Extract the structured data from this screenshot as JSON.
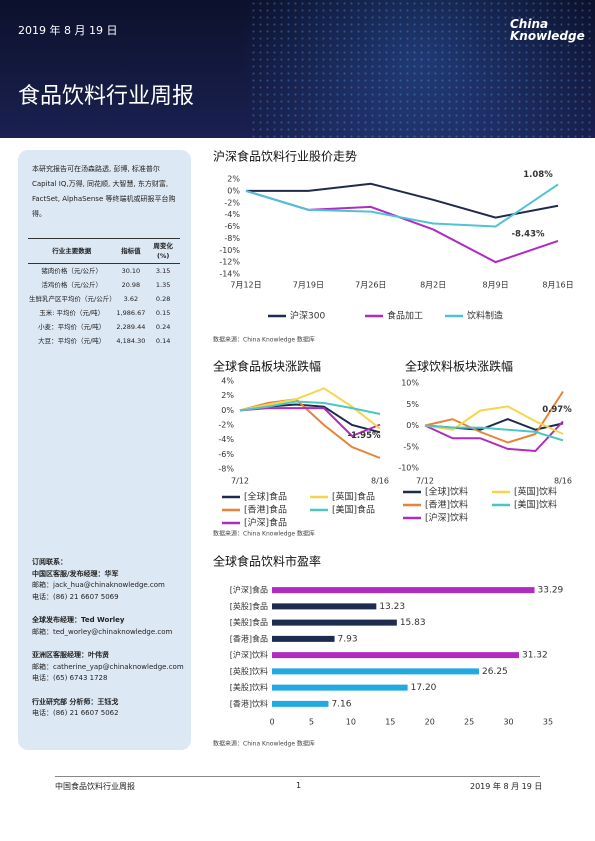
{
  "header": {
    "date": "2019 年 8 月 19 日",
    "logo": "China Knowledge",
    "title": "食品饮料行业周报"
  },
  "sidebar": {
    "intro": "本研究报告可在汤森路透, 彭博, 标准普尔 Capital IQ,万得, 同花顺, 大智慧, 东方财富, FactSet, AlphaSense 等终端机或研报平台购得。",
    "table": {
      "header": [
        "行业主要数据",
        "指标值",
        "周变化(%)"
      ],
      "rows": [
        [
          "猪肉价格（元/公斤）",
          "30.10",
          "3.15"
        ],
        [
          "活鸡价格（元/公斤）",
          "20.98",
          "1.35"
        ],
        [
          "生鲜乳产区平均价（元/公斤）",
          "3.62",
          "0.28"
        ],
        [
          "玉米: 平均价（元/吨）",
          "1,986.67",
          "0.15"
        ],
        [
          "小麦：平均价（元/吨）",
          "2,289.44",
          "0.24"
        ],
        [
          "大豆：平均价（元/吨）",
          "4,184.30",
          "0.14"
        ]
      ]
    },
    "contacts": [
      {
        "role": "订阅联系：",
        "lines": []
      },
      {
        "role": "中国区客服/发布经理：华军",
        "lines": [
          "邮箱：jack_hua@chinaknowledge.com",
          "电话：(86) 21 6607 5069"
        ]
      },
      {
        "role": "全球发布经理：Ted Worley",
        "lines": [
          "邮箱：ted_worley@chinaknowledge.com"
        ]
      },
      {
        "role": "亚洲区客服经理：叶伟贤",
        "lines": [
          "邮箱：catherine_yap@chinaknowledge.com",
          "电话：(65) 6743 1728"
        ]
      },
      {
        "role": "行业研究部 分析师：王钰戈",
        "lines": [
          "电话：(86) 21 6607 5062"
        ]
      }
    ]
  },
  "chart_data": [
    {
      "type": "line",
      "title": "沪深食品饮料行业股价走势",
      "categories": [
        "7月12日",
        "7月19日",
        "7月26日",
        "8月2日",
        "8月9日",
        "8月16日"
      ],
      "series": [
        {
          "name": "沪深300",
          "color": "#1f2a4f",
          "values": [
            0,
            0,
            1.2,
            -1.5,
            -4.5,
            -2.5
          ]
        },
        {
          "name": "食品加工",
          "color": "#b02bbf",
          "values": [
            0,
            -3.2,
            -2.7,
            -6.5,
            -12,
            -8.43
          ],
          "value_labels": [
            null,
            null,
            null,
            null,
            null,
            "-8.43%"
          ]
        },
        {
          "name": "饮料制造",
          "color": "#4ec3d8",
          "values": [
            0,
            -3.2,
            -3.5,
            -5.5,
            -6,
            1.08
          ],
          "value_labels": [
            null,
            null,
            null,
            null,
            null,
            "1.08%"
          ]
        }
      ],
      "ylim": [
        -14,
        2
      ],
      "yticks": [
        {
          "value": 2,
          "label": "2%"
        },
        {
          "value": 0,
          "label": "0%"
        },
        {
          "value": -2,
          "label": "-2%"
        },
        {
          "value": -4,
          "label": "-4%"
        },
        {
          "value": -6,
          "label": "-6%"
        },
        {
          "value": -8,
          "label": "-8%"
        },
        {
          "value": -10,
          "label": "-10%"
        },
        {
          "value": -12,
          "label": "-12%"
        },
        {
          "value": -14,
          "label": "-14%"
        }
      ],
      "grid": false
    },
    {
      "type": "line",
      "title": "全球食品板块涨跌幅",
      "categories": [
        "7/12",
        null,
        null,
        null,
        null,
        "8/16"
      ],
      "series": [
        {
          "name": "[全球]食品",
          "color": "#1f2a4f",
          "values": [
            0,
            0.5,
            0.8,
            0.5,
            -2,
            -3
          ]
        },
        {
          "name": "[香港]食品",
          "color": "#e8823a",
          "values": [
            0,
            1,
            1.5,
            -2,
            -5,
            -6.5
          ]
        },
        {
          "name": "[沪深]食品",
          "color": "#b02bbf",
          "values": [
            0,
            0.3,
            0.3,
            0.3,
            -3.5,
            -1.95
          ],
          "value_labels": [
            null,
            null,
            null,
            null,
            null,
            "-1.95%"
          ]
        },
        {
          "name": "[英国]食品",
          "color": "#f7d54a",
          "values": [
            0,
            0.8,
            1.5,
            3,
            0.5,
            -2.5
          ]
        },
        {
          "name": "[美国]食品",
          "color": "#4cc6c4",
          "values": [
            0,
            0.5,
            1.2,
            1,
            0.3,
            -0.5
          ]
        }
      ],
      "ylim": [
        -8,
        4
      ],
      "yticks": [
        {
          "value": 4,
          "label": "4%"
        },
        {
          "value": 2,
          "label": "2%"
        },
        {
          "value": 0,
          "label": "0%"
        },
        {
          "value": -2,
          "label": "-2%"
        },
        {
          "value": -4,
          "label": "-4%"
        },
        {
          "value": -6,
          "label": "-6%"
        },
        {
          "value": -8,
          "label": "-8%"
        }
      ],
      "grid": false
    },
    {
      "type": "line",
      "title": "全球饮料板块涨跌幅",
      "categories": [
        "7/12",
        null,
        null,
        null,
        null,
        "8/16"
      ],
      "series": [
        {
          "name": "[全球]饮料",
          "color": "#1f2a4f",
          "values": [
            0,
            -0.5,
            -1,
            1.5,
            -1,
            0.5
          ]
        },
        {
          "name": "[香港]饮料",
          "color": "#e8823a",
          "values": [
            0,
            1.5,
            -1.5,
            -4,
            -2,
            8
          ]
        },
        {
          "name": "[沪深]饮料",
          "color": "#b02bbf",
          "values": [
            0,
            -3,
            -3,
            -5.5,
            -6,
            0.97
          ],
          "value_labels": [
            null,
            null,
            null,
            null,
            null,
            "0.97%"
          ]
        },
        {
          "name": "[英国]饮料",
          "color": "#f7d54a",
          "values": [
            0,
            -1,
            3.5,
            4.5,
            1,
            -2
          ]
        },
        {
          "name": "[美国]饮料",
          "color": "#4cc6c4",
          "values": [
            0,
            -0.5,
            -0.5,
            -1,
            -1.5,
            -3.5
          ]
        }
      ],
      "ylim": [
        -10,
        10
      ],
      "yticks": [
        {
          "value": 10,
          "label": "10%"
        },
        {
          "value": 5,
          "label": "5%"
        },
        {
          "value": 0,
          "label": "0%"
        },
        {
          "value": -5,
          "label": "-5%"
        },
        {
          "value": -10,
          "label": "-10%"
        }
      ],
      "grid": false
    },
    {
      "type": "hbar",
      "title": "全球食品饮料市盈率",
      "categories": [
        "[沪深]食品",
        "[英股]食品",
        "[美股]食品",
        "[香港]食品",
        "[沪深]饮料",
        "[英股]饮料",
        "[美股]饮料",
        "[香港]饮料"
      ],
      "values": [
        33.29,
        13.23,
        15.83,
        7.93,
        31.32,
        26.25,
        17.2,
        7.16
      ],
      "value_labels": [
        "33.29",
        "13.23",
        "15.83",
        "7.93",
        "31.32",
        "26.25",
        "17.20",
        "7.16"
      ],
      "colors": [
        "#b02bbf",
        "#1f2a4f",
        "#1f2a4f",
        "#1f2a4f",
        "#b02bbf",
        "#22a9e0",
        "#22a9e0",
        "#22a9e0"
      ],
      "xlim": [
        0,
        35
      ],
      "xticks": [
        0,
        5,
        10,
        15,
        20,
        25,
        30,
        35
      ],
      "grid": false
    }
  ],
  "sources": [
    "数据来源：China Knowledge 数据库",
    "数据来源：China Knowledge 数据库",
    "数据来源：China Knowledge 数据库"
  ],
  "footer": {
    "left": "中国食品饮料行业周报",
    "page": "1",
    "date": "2019 年 8 月 19 日"
  }
}
